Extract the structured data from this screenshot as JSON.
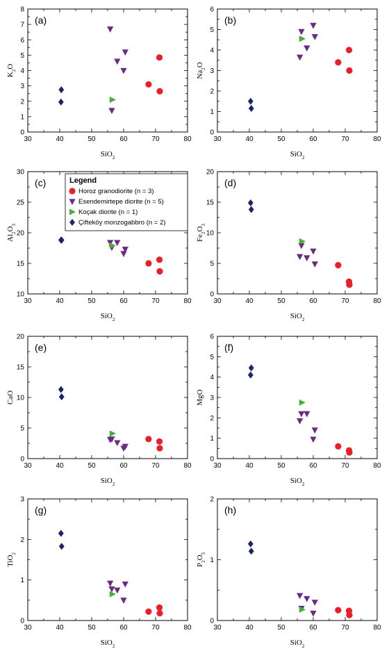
{
  "legend": {
    "title": "Legend",
    "entries": [
      {
        "label": "Horoz granodiorite (n = 3)",
        "color": "#e8202a",
        "marker": "circle"
      },
      {
        "label": "Esendemirtepe diorite (n = 5)",
        "color": "#6b2a83",
        "marker": "triangle-down"
      },
      {
        "label": "Koçak diorite (n = 1)",
        "color": "#4aac3b",
        "marker": "triangle-right"
      },
      {
        "label": "Çifteköy monzogabbro (n = 2)",
        "color": "#1b2466",
        "marker": "diamond"
      }
    ]
  },
  "chart_data": [
    {
      "type": "scatter",
      "panel": "(a)",
      "xlabel": [
        "SiO",
        "2",
        ""
      ],
      "ylabel": [
        "K",
        "2",
        "O"
      ],
      "xlim": [
        30,
        80
      ],
      "ylim": [
        0,
        8
      ],
      "xticks": [
        30,
        40,
        50,
        60,
        70,
        80
      ],
      "yticks": [
        0,
        1,
        2,
        3,
        4,
        5,
        6,
        7,
        8
      ],
      "series": [
        {
          "name": "Horoz granodiorite (n = 3)",
          "x": [
            67.8,
            71.2,
            71.3
          ],
          "y": [
            3.1,
            4.85,
            2.65
          ]
        },
        {
          "name": "Esendemirtepe diorite (n = 5)",
          "x": [
            55.8,
            56.3,
            58,
            60,
            60.5
          ],
          "y": [
            6.7,
            1.4,
            4.6,
            4.0,
            5.2
          ]
        },
        {
          "name": "Koçak diorite (n = 1)",
          "x": [
            56.5
          ],
          "y": [
            2.1
          ]
        },
        {
          "name": "Çifteköy monzogabbro (n = 2)",
          "x": [
            40.5,
            40.4
          ],
          "y": [
            2.75,
            1.95
          ]
        }
      ]
    },
    {
      "type": "scatter",
      "panel": "(b)",
      "xlabel": [
        "SiO",
        "2",
        ""
      ],
      "ylabel": [
        "Na",
        "2",
        "O"
      ],
      "xlim": [
        30,
        80
      ],
      "ylim": [
        0,
        6
      ],
      "xticks": [
        30,
        40,
        50,
        60,
        70,
        80
      ],
      "yticks": [
        0,
        1,
        2,
        3,
        4,
        5,
        6
      ],
      "series": [
        {
          "name": "Horoz granodiorite (n = 3)",
          "x": [
            67.8,
            71.2,
            71.3
          ],
          "y": [
            3.4,
            4.0,
            3.0
          ]
        },
        {
          "name": "Esendemirtepe diorite (n = 5)",
          "x": [
            55.8,
            56.3,
            58,
            60,
            60.5
          ],
          "y": [
            3.65,
            4.9,
            4.1,
            5.2,
            4.65
          ]
        },
        {
          "name": "Koçak diorite (n = 1)",
          "x": [
            56.5
          ],
          "y": [
            4.55
          ]
        },
        {
          "name": "Çifteköy monzogabbro (n = 2)",
          "x": [
            40.4,
            40.6
          ],
          "y": [
            1.5,
            1.15
          ]
        }
      ]
    },
    {
      "type": "scatter",
      "panel": "(c)",
      "xlabel": [
        "SiO",
        "2",
        ""
      ],
      "ylabel": [
        "Al",
        "2",
        "O",
        "3"
      ],
      "xlim": [
        30,
        80
      ],
      "ylim": [
        10,
        30
      ],
      "xticks": [
        30,
        40,
        50,
        60,
        70,
        80
      ],
      "yticks": [
        10,
        15,
        20,
        25,
        30
      ],
      "series": [
        {
          "name": "Horoz granodiorite (n = 3)",
          "x": [
            67.8,
            71.2,
            71.3
          ],
          "y": [
            15.0,
            15.6,
            13.7
          ]
        },
        {
          "name": "Esendemirtepe diorite (n = 5)",
          "x": [
            55.8,
            56.3,
            58,
            60,
            60.5
          ],
          "y": [
            18.4,
            17.6,
            18.4,
            16.6,
            17.3
          ]
        },
        {
          "name": "Koçak diorite (n = 1)",
          "x": [
            56.5
          ],
          "y": [
            17.9
          ]
        },
        {
          "name": "Çifteköy monzogabbro (n = 2)",
          "x": [
            40.4,
            40.6
          ],
          "y": [
            18.8,
            18.8
          ]
        }
      ]
    },
    {
      "type": "scatter",
      "panel": "(d)",
      "xlabel": [
        "SiO",
        "2",
        ""
      ],
      "ylabel": [
        "Fe",
        "2",
        "O",
        "3"
      ],
      "xlim": [
        30,
        80
      ],
      "ylim": [
        0,
        20
      ],
      "xticks": [
        30,
        40,
        50,
        60,
        70,
        80
      ],
      "yticks": [
        0,
        5,
        10,
        15,
        20
      ],
      "series": [
        {
          "name": "Horoz granodiorite (n = 3)",
          "x": [
            67.8,
            71.2,
            71.3
          ],
          "y": [
            4.7,
            2.0,
            1.5
          ]
        },
        {
          "name": "Esendemirtepe diorite (n = 5)",
          "x": [
            55.8,
            56.3,
            58,
            60,
            60.5
          ],
          "y": [
            6.1,
            7.9,
            5.9,
            7.0,
            4.9
          ]
        },
        {
          "name": "Koçak diorite (n = 1)",
          "x": [
            56.5
          ],
          "y": [
            8.6
          ]
        },
        {
          "name": "Çifteköy monzogabbro (n = 2)",
          "x": [
            40.4,
            40.6
          ],
          "y": [
            14.9,
            13.8
          ]
        }
      ]
    },
    {
      "type": "scatter",
      "panel": "(e)",
      "xlabel": [
        "SiO",
        "2",
        ""
      ],
      "ylabel": [
        "CaO"
      ],
      "xlim": [
        30,
        80
      ],
      "ylim": [
        0,
        20
      ],
      "xticks": [
        30,
        40,
        50,
        60,
        70,
        80
      ],
      "yticks": [
        0,
        5,
        10,
        15,
        20
      ],
      "series": [
        {
          "name": "Horoz granodiorite (n = 3)",
          "x": [
            67.8,
            71.2,
            71.3
          ],
          "y": [
            3.2,
            2.8,
            1.7
          ]
        },
        {
          "name": "Esendemirtepe diorite (n = 5)",
          "x": [
            55.8,
            56.3,
            58,
            60,
            60.5
          ],
          "y": [
            3.1,
            3.2,
            2.6,
            1.7,
            2.0
          ]
        },
        {
          "name": "Koçak diorite (n = 1)",
          "x": [
            56.5
          ],
          "y": [
            4.1
          ]
        },
        {
          "name": "Çifteköy monzogabbro (n = 2)",
          "x": [
            40.4,
            40.6
          ],
          "y": [
            11.3,
            10.1
          ]
        }
      ]
    },
    {
      "type": "scatter",
      "panel": "(f)",
      "xlabel": [
        "SiO",
        "2",
        ""
      ],
      "ylabel": [
        "MgO"
      ],
      "xlim": [
        30,
        80
      ],
      "ylim": [
        0,
        6
      ],
      "xticks": [
        30,
        40,
        50,
        60,
        70,
        80
      ],
      "yticks": [
        0,
        1,
        2,
        3,
        4,
        5,
        6
      ],
      "series": [
        {
          "name": "Horoz granodiorite (n = 3)",
          "x": [
            67.8,
            71.2,
            71.3
          ],
          "y": [
            0.6,
            0.4,
            0.3
          ]
        },
        {
          "name": "Esendemirtepe diorite (n = 5)",
          "x": [
            55.8,
            56.3,
            58,
            60,
            60.5
          ],
          "y": [
            1.85,
            2.2,
            2.2,
            0.95,
            1.4
          ]
        },
        {
          "name": "Koçak diorite (n = 1)",
          "x": [
            56.5
          ],
          "y": [
            2.75
          ]
        },
        {
          "name": "Çifteköy monzogabbro (n = 2)",
          "x": [
            40.6,
            40.4
          ],
          "y": [
            4.45,
            4.1
          ]
        }
      ]
    },
    {
      "type": "scatter",
      "panel": "(g)",
      "xlabel": [
        "SiO",
        "2",
        ""
      ],
      "ylabel": [
        "TiO",
        "2",
        ""
      ],
      "xlim": [
        30,
        80
      ],
      "ylim": [
        0,
        3
      ],
      "xticks": [
        30,
        40,
        50,
        60,
        70,
        80
      ],
      "yticks": [
        0,
        1,
        2,
        3
      ],
      "series": [
        {
          "name": "Horoz granodiorite (n = 3)",
          "x": [
            67.8,
            71.2,
            71.3
          ],
          "y": [
            0.22,
            0.32,
            0.18
          ]
        },
        {
          "name": "Esendemirtepe diorite (n = 5)",
          "x": [
            55.8,
            56.3,
            58,
            60,
            60.5
          ],
          "y": [
            0.92,
            0.78,
            0.75,
            0.5,
            0.9
          ]
        },
        {
          "name": "Koçak diorite (n = 1)",
          "x": [
            56.5
          ],
          "y": [
            0.65
          ]
        },
        {
          "name": "Çifteköy monzogabbro (n = 2)",
          "x": [
            40.4,
            40.6
          ],
          "y": [
            2.15,
            1.83
          ]
        }
      ]
    },
    {
      "type": "scatter",
      "panel": "(h)",
      "xlabel": [
        "SiO",
        "2",
        ""
      ],
      "ylabel": [
        "P",
        "2",
        "O",
        "5"
      ],
      "xlim": [
        30,
        80
      ],
      "ylim": [
        0,
        2
      ],
      "xticks": [
        30,
        40,
        50,
        60,
        70,
        80
      ],
      "yticks": [
        0,
        1,
        2
      ],
      "series": [
        {
          "name": "Horoz granodiorite (n = 3)",
          "x": [
            67.8,
            71.2,
            71.3
          ],
          "y": [
            0.17,
            0.16,
            0.09
          ]
        },
        {
          "name": "Esendemirtepe diorite (n = 5)",
          "x": [
            55.8,
            56.3,
            58,
            60,
            60.5
          ],
          "y": [
            0.41,
            0.2,
            0.36,
            0.12,
            0.3
          ]
        },
        {
          "name": "Koçak diorite (n = 1)",
          "x": [
            56.5
          ],
          "y": [
            0.18
          ]
        },
        {
          "name": "Çifteköy monzogabbro (n = 2)",
          "x": [
            40.4,
            40.6
          ],
          "y": [
            1.26,
            1.14
          ]
        }
      ]
    }
  ]
}
